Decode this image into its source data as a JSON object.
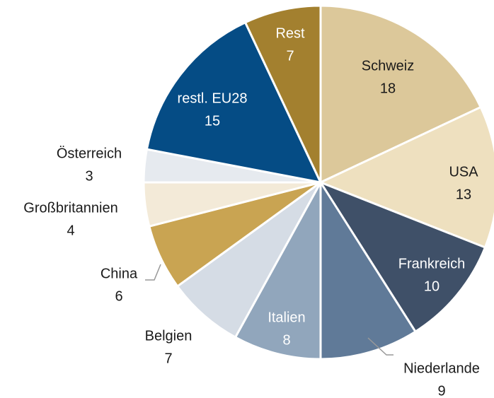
{
  "chart_data": {
    "type": "pie",
    "categories": [
      "Schweiz",
      "USA",
      "Frankreich",
      "Niederlande",
      "Italien",
      "Belgien",
      "China",
      "Großbritannien",
      "Österreich",
      "restl. EU28",
      "Rest"
    ],
    "values": [
      18,
      13,
      10,
      9,
      8,
      7,
      6,
      4,
      3,
      15,
      7
    ],
    "colors": [
      "#dcc89a",
      "#eee0bf",
      "#3f5068",
      "#607a98",
      "#91a6bc",
      "#d5dce5",
      "#c9a452",
      "#f3ead8",
      "#e6eaef",
      "#054c85",
      "#a3802f"
    ]
  }
}
